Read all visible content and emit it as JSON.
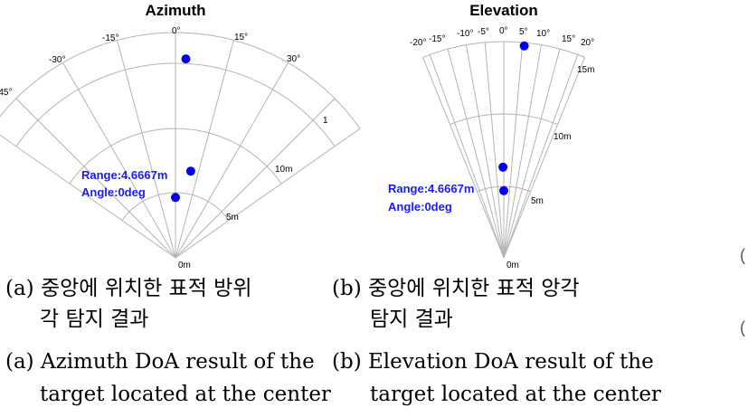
{
  "azimuth": {
    "title": "Azimuth",
    "angle_ticks": [
      "-45°",
      "-30°",
      "-15°",
      "0°",
      "15°",
      "30°"
    ],
    "range_ticks": [
      "0m",
      "5m",
      "10m",
      "1"
    ],
    "annotation": {
      "range": "Range:4.6667m",
      "angle": "Angle:0deg"
    },
    "targets": [
      {
        "angle_deg": 0,
        "range_m": 4.6667
      },
      {
        "angle_deg": 10,
        "range_m": 6.8
      },
      {
        "angle_deg": 3,
        "range_m": 15.4
      }
    ]
  },
  "elevation": {
    "title": "Elevation",
    "angle_ticks": [
      "-20°",
      "-15°",
      "-10°",
      "-5°",
      "0°",
      "5°",
      "10°",
      "15°",
      "20°"
    ],
    "range_ticks": [
      "0m",
      "5m",
      "10m",
      "15m"
    ],
    "annotation": {
      "range": "Range:4.6667m",
      "angle": "Angle:0deg"
    },
    "targets": [
      {
        "angle_deg": 0,
        "range_m": 4.6667
      },
      {
        "angle_deg": -0.5,
        "range_m": 6.3
      },
      {
        "angle_deg": 5.5,
        "range_m": 14.8
      }
    ]
  },
  "captions": {
    "a_korean_1": "(a) 중앙에 위치한 표적 방위",
    "a_korean_2": "각 탐지 결과",
    "b_korean_1": "(b) 중앙에 위치한 표적 앙각",
    "b_korean_2": "탐지 결과",
    "a_english_1": "(a) Azimuth DoA result of the",
    "a_english_2": "target located at the center",
    "b_english_1": "(b) Elevation DoA result of the",
    "b_english_2": "target located at the center"
  },
  "colors": {
    "target": "#0000ee",
    "annotation": "#1a1aff",
    "grid": "#b4b4b4"
  }
}
